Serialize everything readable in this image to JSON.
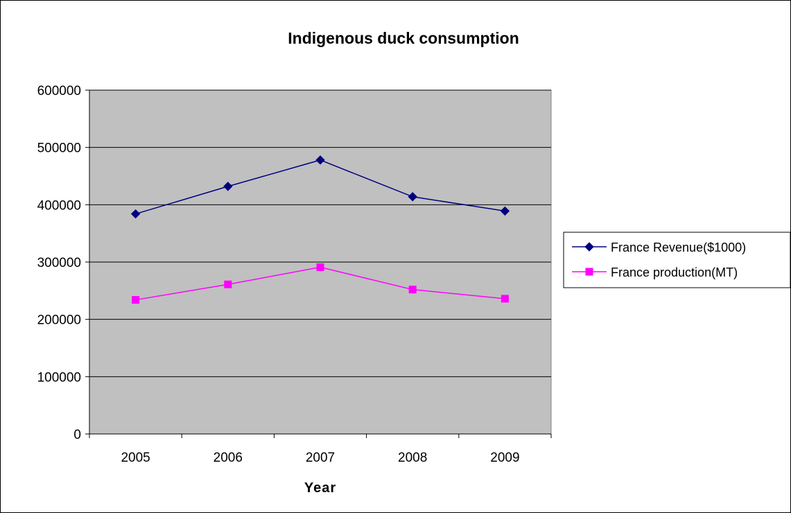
{
  "chart_data": {
    "type": "line",
    "title": "Indigenous duck consumption",
    "xlabel": "Year",
    "ylabel": "",
    "categories": [
      "2005",
      "2006",
      "2007",
      "2008",
      "2009"
    ],
    "ylim": [
      0,
      600000
    ],
    "yticks": [
      0,
      100000,
      200000,
      300000,
      400000,
      500000,
      600000
    ],
    "grid": true,
    "legend": "right",
    "plot_background": "#C0C0C0",
    "series": [
      {
        "name": "France Revenue($1000)",
        "color": "#000080",
        "marker": "diamond",
        "values": [
          384000,
          432000,
          478000,
          414000,
          389000
        ]
      },
      {
        "name": "France production(MT)",
        "color": "#FF00FF",
        "marker": "square",
        "values": [
          234000,
          261000,
          291000,
          252000,
          236000
        ]
      }
    ]
  }
}
